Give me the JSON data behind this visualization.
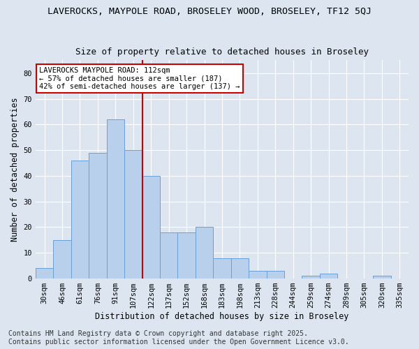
{
  "title_line1": "LAVEROCKS, MAYPOLE ROAD, BROSELEY WOOD, BROSELEY, TF12 5QJ",
  "title_line2": "Size of property relative to detached houses in Broseley",
  "xlabel": "Distribution of detached houses by size in Broseley",
  "ylabel": "Number of detached properties",
  "bar_labels": [
    "30sqm",
    "46sqm",
    "61sqm",
    "76sqm",
    "91sqm",
    "107sqm",
    "122sqm",
    "137sqm",
    "152sqm",
    "168sqm",
    "183sqm",
    "198sqm",
    "213sqm",
    "228sqm",
    "244sqm",
    "259sqm",
    "274sqm",
    "289sqm",
    "305sqm",
    "320sqm",
    "335sqm"
  ],
  "bar_values": [
    4,
    15,
    46,
    49,
    62,
    50,
    40,
    18,
    18,
    20,
    8,
    8,
    3,
    3,
    0,
    1,
    2,
    0,
    0,
    1,
    0
  ],
  "bar_color": "#b8d0eb",
  "bar_edge_color": "#6a9fd8",
  "background_color": "#dde6f0",
  "grid_color": "#ffffff",
  "vline_x_index": 5,
  "vline_color": "#cc0000",
  "annotation_text": "LAVEROCKS MAYPOLE ROAD: 112sqm\n← 57% of detached houses are smaller (187)\n42% of semi-detached houses are larger (137) →",
  "annotation_box_color": "#ffffff",
  "annotation_box_edge": "#cc0000",
  "ylim": [
    0,
    85
  ],
  "yticks": [
    0,
    10,
    20,
    30,
    40,
    50,
    60,
    70,
    80
  ],
  "footer_text": "Contains HM Land Registry data © Crown copyright and database right 2025.\nContains public sector information licensed under the Open Government Licence v3.0.",
  "title_fontsize": 9.5,
  "subtitle_fontsize": 9,
  "axis_label_fontsize": 8.5,
  "tick_fontsize": 7.5,
  "annotation_fontsize": 7.5,
  "footer_fontsize": 7
}
